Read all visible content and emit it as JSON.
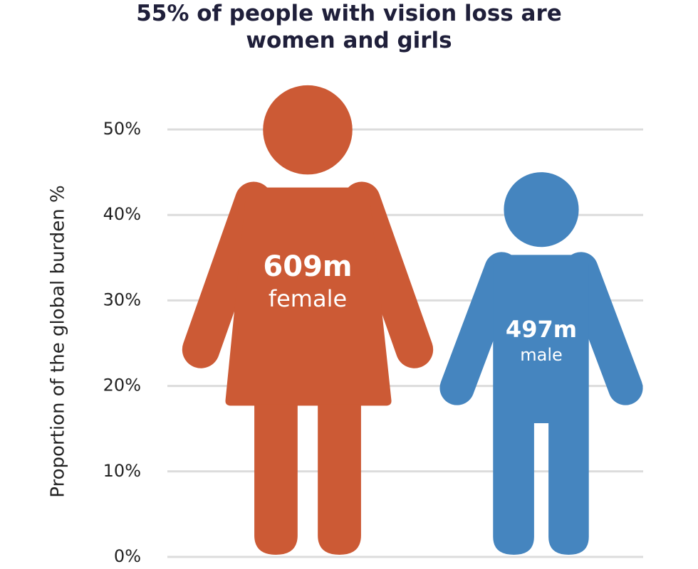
{
  "chart_data": {
    "type": "pictograph",
    "title": "55% of people with vision loss are women and girls",
    "y_label": "Proportion of the global burden %",
    "categories": [
      "female",
      "male"
    ],
    "count_labels": [
      "609m",
      "497m"
    ],
    "values": [
      55,
      45
    ],
    "colors": [
      "#cc5a35",
      "#4585bf"
    ],
    "ylim": [
      0,
      50
    ],
    "yticks": [
      {
        "value": 0,
        "label": "0%"
      },
      {
        "value": 10,
        "label": "10%"
      },
      {
        "value": 20,
        "label": "20%"
      },
      {
        "value": 30,
        "label": "30%"
      },
      {
        "value": 40,
        "label": "40%"
      },
      {
        "value": 50,
        "label": "50%"
      }
    ],
    "grid": true
  }
}
